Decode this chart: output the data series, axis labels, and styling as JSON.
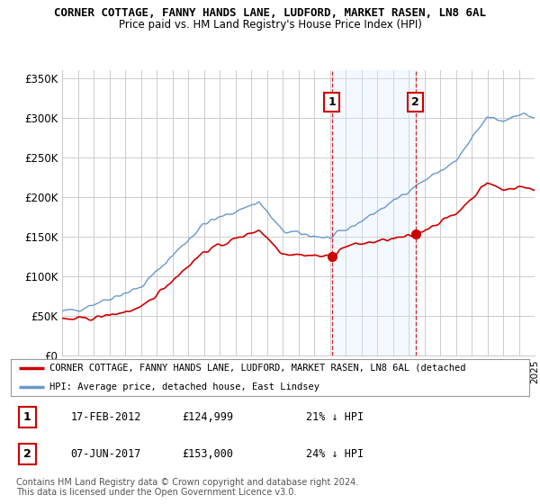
{
  "title": "CORNER COTTAGE, FANNY HANDS LANE, LUDFORD, MARKET RASEN, LN8 6AL",
  "subtitle": "Price paid vs. HM Land Registry's House Price Index (HPI)",
  "ylabel_ticks": [
    "£0",
    "£50K",
    "£100K",
    "£150K",
    "£200K",
    "£250K",
    "£300K",
    "£350K"
  ],
  "ytick_values": [
    0,
    50000,
    100000,
    150000,
    200000,
    250000,
    300000,
    350000
  ],
  "ylim": [
    0,
    360000
  ],
  "x_start_year": 1995,
  "x_end_year": 2025,
  "sale1_date": 2012.12,
  "sale1_label": "1",
  "sale1_price": 124999,
  "sale2_date": 2017.43,
  "sale2_label": "2",
  "sale2_price": 153000,
  "red_line_color": "#cc0000",
  "blue_line_color": "#6699cc",
  "annotation_box_color": "#cc0000",
  "shaded_region_color": "#ddeeff",
  "legend_line1": "CORNER COTTAGE, FANNY HANDS LANE, LUDFORD, MARKET RASEN, LN8 6AL (detached",
  "legend_line2": "HPI: Average price, detached house, East Lindsey",
  "table_row1": [
    "1",
    "17-FEB-2012",
    "£124,999",
    "21% ↓ HPI"
  ],
  "table_row2": [
    "2",
    "07-JUN-2017",
    "£153,000",
    "24% ↓ HPI"
  ],
  "footer": "Contains HM Land Registry data © Crown copyright and database right 2024.\nThis data is licensed under the Open Government Licence v3.0.",
  "background_color": "#ffffff",
  "grid_color": "#cccccc"
}
